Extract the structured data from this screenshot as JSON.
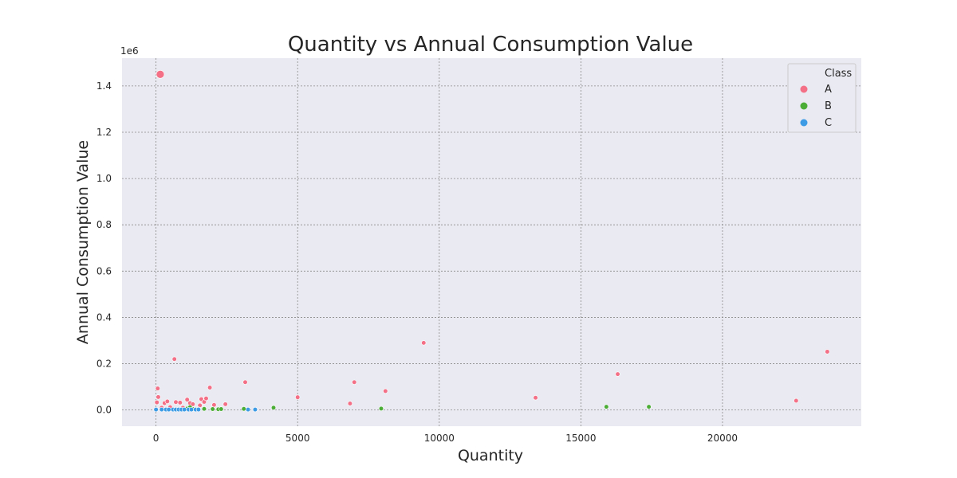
{
  "chart_data": {
    "type": "scatter",
    "title": "Quantity vs Annual Consumption Value",
    "xlabel": "Quantity",
    "ylabel": "Annual Consumption Value",
    "y_offset_label": "1e6",
    "xlim": [
      -1200,
      24900
    ],
    "ylim": [
      -0.07,
      1.52
    ],
    "xticks": [
      0,
      5000,
      10000,
      15000,
      20000
    ],
    "xtick_labels": [
      "0",
      "5000",
      "10000",
      "15000",
      "20000"
    ],
    "yticks": [
      0.0,
      0.2,
      0.4,
      0.6,
      0.8,
      1.0,
      1.2,
      1.4
    ],
    "ytick_labels": [
      "0.0",
      "0.2",
      "0.4",
      "0.6",
      "0.8",
      "1.0",
      "1.2",
      "1.4"
    ],
    "grid": true,
    "legend": {
      "title": "Class",
      "position": "top-right"
    },
    "series": [
      {
        "name": "A",
        "color": "#f37086",
        "points": [
          [
            150,
            1.45
          ],
          [
            60,
            0.093
          ],
          [
            80,
            0.056
          ],
          [
            650,
            0.22
          ],
          [
            1900,
            0.097
          ],
          [
            3150,
            0.12
          ],
          [
            5000,
            0.055
          ],
          [
            6850,
            0.028
          ],
          [
            7000,
            0.12
          ],
          [
            8100,
            0.082
          ],
          [
            9450,
            0.29
          ],
          [
            13400,
            0.053
          ],
          [
            16300,
            0.155
          ],
          [
            22600,
            0.04
          ],
          [
            23700,
            0.252
          ],
          [
            30,
            0.033
          ],
          [
            300,
            0.03
          ],
          [
            400,
            0.037
          ],
          [
            700,
            0.034
          ],
          [
            850,
            0.032
          ],
          [
            1100,
            0.045
          ],
          [
            1200,
            0.03
          ],
          [
            1300,
            0.025
          ],
          [
            1600,
            0.047
          ],
          [
            1700,
            0.035
          ],
          [
            1770,
            0.05
          ],
          [
            2050,
            0.022
          ],
          [
            2450,
            0.025
          ],
          [
            1550,
            0.02
          ],
          [
            950,
            0.01
          ],
          [
            200,
            0.01
          ],
          [
            500,
            0.012
          ]
        ]
      },
      {
        "name": "B",
        "color": "#4bac36",
        "points": [
          [
            1100,
            0.006
          ],
          [
            1300,
            0.004
          ],
          [
            1700,
            0.005
          ],
          [
            2000,
            0.004
          ],
          [
            2200,
            0.003
          ],
          [
            2300,
            0.004
          ],
          [
            3100,
            0.005
          ],
          [
            4150,
            0.01
          ],
          [
            7950,
            0.006
          ],
          [
            15900,
            0.014
          ],
          [
            17400,
            0.014
          ],
          [
            1500,
            0.004
          ],
          [
            1200,
            0.012
          ]
        ]
      },
      {
        "name": "C",
        "color": "#3c9be4",
        "points": [
          [
            0,
            0.002
          ],
          [
            200,
            0.002
          ],
          [
            350,
            0.002
          ],
          [
            450,
            0.002
          ],
          [
            600,
            0.002
          ],
          [
            700,
            0.002
          ],
          [
            800,
            0.002
          ],
          [
            900,
            0.002
          ],
          [
            1000,
            0.002
          ],
          [
            1150,
            0.002
          ],
          [
            1250,
            0.002
          ],
          [
            1400,
            0.002
          ],
          [
            1500,
            0.002
          ],
          [
            3250,
            0.002
          ],
          [
            3500,
            0.002
          ]
        ]
      }
    ]
  },
  "colors": {
    "plot_background": "#eaeaf2",
    "grid": "#8a8a8a",
    "text": "#262626"
  }
}
